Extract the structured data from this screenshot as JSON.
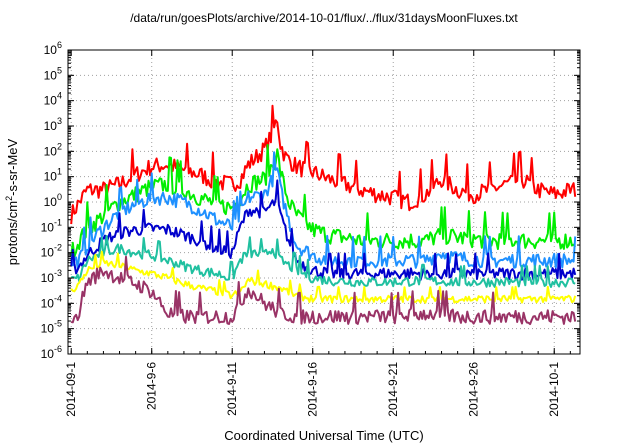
{
  "chart_data": {
    "type": "line",
    "title": "/data/run/goesPlots/archive/2014-10-01/flux/../flux/31daysMoonFluxes.txt",
    "xlabel": "Coordinated Universal Time (UTC)",
    "ylabel": {
      "base": "protons/cm",
      "sup": "2",
      "rest": "-s-sr-MeV"
    },
    "yscale": "log",
    "ylim": [
      1e-06,
      1000000.0
    ],
    "xlim": [
      -0.2,
      31.6
    ],
    "x_unit": "days since 2014-09-01",
    "grid": true,
    "xticks": [
      {
        "x": 0,
        "label": "2014-09-1"
      },
      {
        "x": 5,
        "label": "2014-9-6"
      },
      {
        "x": 10,
        "label": "2014-9-11"
      },
      {
        "x": 15,
        "label": "2014-9-16"
      },
      {
        "x": 20,
        "label": "2014-9-21"
      },
      {
        "x": 25,
        "label": "2014-9-26"
      },
      {
        "x": 30,
        "label": "2014-10-1"
      }
    ],
    "yticks": [
      {
        "exp": -6,
        "label": "10",
        "sup": "-6"
      },
      {
        "exp": -5,
        "label": "10",
        "sup": "-5"
      },
      {
        "exp": -4,
        "label": "10",
        "sup": "-4"
      },
      {
        "exp": -3,
        "label": "10",
        "sup": "-3"
      },
      {
        "exp": -2,
        "label": "10",
        "sup": "-2"
      },
      {
        "exp": -1,
        "label": "10",
        "sup": "-1"
      },
      {
        "exp": 0,
        "label": "10",
        "sup": "0"
      },
      {
        "exp": 1,
        "label": "10",
        "sup": "1"
      },
      {
        "exp": 2,
        "label": "10",
        "sup": "2"
      },
      {
        "exp": 3,
        "label": "10",
        "sup": "3"
      },
      {
        "exp": 4,
        "label": "10",
        "sup": "4"
      },
      {
        "exp": 5,
        "label": "10",
        "sup": "5"
      },
      {
        "exp": 6,
        "label": "10",
        "sup": "6"
      }
    ],
    "series": [
      {
        "color": "#ff0000",
        "noise": 0.35,
        "points": [
          [
            0,
            0.3
          ],
          [
            0.5,
            1.0
          ],
          [
            1,
            3
          ],
          [
            2,
            3
          ],
          [
            3,
            5
          ],
          [
            4,
            12
          ],
          [
            5,
            25
          ],
          [
            6,
            30
          ],
          [
            7,
            18
          ],
          [
            8,
            12
          ],
          [
            9,
            6
          ],
          [
            10,
            5
          ],
          [
            10.5,
            8
          ],
          [
            11,
            30
          ],
          [
            11.5,
            60
          ],
          [
            12,
            120
          ],
          [
            12.5,
            500
          ],
          [
            12.8,
            2000
          ],
          [
            13,
            200
          ],
          [
            13.3,
            60
          ],
          [
            14,
            25
          ],
          [
            15,
            15
          ],
          [
            16,
            8
          ],
          [
            17,
            5
          ],
          [
            18,
            3
          ],
          [
            19,
            2
          ],
          [
            20,
            1.5
          ],
          [
            21,
            1
          ],
          [
            22,
            2
          ],
          [
            23,
            8
          ],
          [
            24,
            3
          ],
          [
            25,
            2
          ],
          [
            26,
            3
          ],
          [
            27,
            5
          ],
          [
            28,
            8
          ],
          [
            29,
            3
          ],
          [
            30,
            2
          ],
          [
            31,
            3
          ]
        ]
      },
      {
        "color": "#00ee00",
        "noise": 0.35,
        "points": [
          [
            0,
            0.01
          ],
          [
            0.5,
            0.03
          ],
          [
            1,
            0.08
          ],
          [
            2,
            0.3
          ],
          [
            3,
            1
          ],
          [
            4,
            2
          ],
          [
            5,
            4
          ],
          [
            6,
            5
          ],
          [
            7,
            3
          ],
          [
            8,
            1.5
          ],
          [
            9,
            0.8
          ],
          [
            10,
            0.6
          ],
          [
            10.5,
            1.5
          ],
          [
            11,
            5
          ],
          [
            12,
            8
          ],
          [
            12.5,
            30
          ],
          [
            12.8,
            80
          ],
          [
            13,
            15
          ],
          [
            13.5,
            1
          ],
          [
            14,
            0.3
          ],
          [
            15,
            0.08
          ],
          [
            16,
            0.05
          ],
          [
            17,
            0.04
          ],
          [
            18,
            0.03
          ],
          [
            20,
            0.03
          ],
          [
            22,
            0.03
          ],
          [
            23,
            0.05
          ],
          [
            24,
            0.04
          ],
          [
            26,
            0.03
          ],
          [
            28,
            0.03
          ],
          [
            30,
            0.03
          ],
          [
            31,
            0.03
          ]
        ]
      },
      {
        "color": "#1e90ff",
        "noise": 0.3,
        "points": [
          [
            0,
            0.004
          ],
          [
            0.5,
            0.005
          ],
          [
            1,
            0.02
          ],
          [
            2,
            0.1
          ],
          [
            3,
            0.4
          ],
          [
            4,
            0.8
          ],
          [
            5,
            1.5
          ],
          [
            6,
            1.5
          ],
          [
            7,
            1
          ],
          [
            8,
            0.5
          ],
          [
            9,
            0.2
          ],
          [
            10,
            0.1
          ],
          [
            10.5,
            0.3
          ],
          [
            11,
            1.5
          ],
          [
            12,
            2
          ],
          [
            12.5,
            8
          ],
          [
            12.8,
            20
          ],
          [
            13,
            3
          ],
          [
            13.5,
            0.2
          ],
          [
            14,
            0.02
          ],
          [
            15,
            0.008
          ],
          [
            16,
            0.005
          ],
          [
            18,
            0.005
          ],
          [
            20,
            0.005
          ],
          [
            22,
            0.005
          ],
          [
            23,
            0.01
          ],
          [
            24,
            0.006
          ],
          [
            26,
            0.005
          ],
          [
            28,
            0.005
          ],
          [
            30,
            0.005
          ],
          [
            31,
            0.005
          ]
        ]
      },
      {
        "color": "#0000cc",
        "noise": 0.25,
        "points": [
          [
            0,
            0.002
          ],
          [
            0.5,
            0.003
          ],
          [
            1,
            0.008
          ],
          [
            2,
            0.03
          ],
          [
            3,
            0.06
          ],
          [
            4,
            0.08
          ],
          [
            5,
            0.09
          ],
          [
            6,
            0.08
          ],
          [
            7,
            0.05
          ],
          [
            8,
            0.03
          ],
          [
            9,
            0.015
          ],
          [
            10,
            0.01
          ],
          [
            10.5,
            0.1
          ],
          [
            11,
            0.5
          ],
          [
            12,
            0.4
          ],
          [
            12.5,
            0.8
          ],
          [
            12.8,
            1.2
          ],
          [
            13,
            0.3
          ],
          [
            13.5,
            0.03
          ],
          [
            14,
            0.005
          ],
          [
            15,
            0.002
          ],
          [
            16,
            0.0015
          ],
          [
            18,
            0.0015
          ],
          [
            20,
            0.0015
          ],
          [
            22,
            0.0015
          ],
          [
            24,
            0.0015
          ],
          [
            26,
            0.0015
          ],
          [
            28,
            0.0015
          ],
          [
            30,
            0.0015
          ],
          [
            31,
            0.0015
          ]
        ]
      },
      {
        "color": "#20c0a0",
        "noise": 0.2,
        "points": [
          [
            0,
            0.0008
          ],
          [
            0.5,
            0.001
          ],
          [
            1,
            0.005
          ],
          [
            2,
            0.01
          ],
          [
            3,
            0.015
          ],
          [
            4,
            0.01
          ],
          [
            5,
            0.008
          ],
          [
            6,
            0.005
          ],
          [
            7,
            0.003
          ],
          [
            8,
            0.002
          ],
          [
            9,
            0.0015
          ],
          [
            10,
            0.001
          ],
          [
            10.5,
            0.005
          ],
          [
            11,
            0.01
          ],
          [
            12,
            0.008
          ],
          [
            12.5,
            0.015
          ],
          [
            13,
            0.005
          ],
          [
            14,
            0.002
          ],
          [
            15,
            0.001
          ],
          [
            16,
            0.0008
          ],
          [
            18,
            0.0007
          ],
          [
            20,
            0.0007
          ],
          [
            22,
            0.0008
          ],
          [
            24,
            0.0007
          ],
          [
            26,
            0.0007
          ],
          [
            28,
            0.0007
          ],
          [
            30,
            0.0007
          ],
          [
            31,
            0.0007
          ]
        ]
      },
      {
        "color": "#ffff00",
        "noise": 0.15,
        "points": [
          [
            0,
            0.0003
          ],
          [
            0.5,
            0.0006
          ],
          [
            1,
            0.002
          ],
          [
            2,
            0.004
          ],
          [
            3,
            0.003
          ],
          [
            4,
            0.002
          ],
          [
            5,
            0.0015
          ],
          [
            6,
            0.001
          ],
          [
            7,
            0.0006
          ],
          [
            8,
            0.0004
          ],
          [
            9,
            0.0003
          ],
          [
            10,
            0.0002
          ],
          [
            10.5,
            0.0003
          ],
          [
            11,
            0.0008
          ],
          [
            12,
            0.0006
          ],
          [
            13,
            0.0004
          ],
          [
            14,
            0.0002
          ],
          [
            15,
            0.00015
          ],
          [
            16,
            0.00015
          ],
          [
            18,
            0.00015
          ],
          [
            20,
            0.00015
          ],
          [
            22,
            0.00015
          ],
          [
            24,
            0.00015
          ],
          [
            26,
            0.00015
          ],
          [
            28,
            0.00015
          ],
          [
            30,
            0.00015
          ],
          [
            31,
            0.00015
          ]
        ]
      },
      {
        "color": "#993366",
        "noise": 0.3,
        "points": [
          [
            0,
            3e-05
          ],
          [
            0.3,
            2e-05
          ],
          [
            0.6,
            0.0001
          ],
          [
            1,
            0.0007
          ],
          [
            2,
            0.002
          ],
          [
            3,
            0.001
          ],
          [
            4,
            0.0006
          ],
          [
            5,
            0.0003
          ],
          [
            6,
            4e-05
          ],
          [
            7,
            3e-05
          ],
          [
            8,
            3e-05
          ],
          [
            9,
            3e-05
          ],
          [
            10,
            3e-05
          ],
          [
            10.5,
            0.0001
          ],
          [
            11,
            0.0004
          ],
          [
            12,
            0.0001
          ],
          [
            13,
            4e-05
          ],
          [
            14,
            3e-05
          ],
          [
            15,
            3e-05
          ],
          [
            18,
            3e-05
          ],
          [
            20,
            3e-05
          ],
          [
            22,
            4e-05
          ],
          [
            24,
            3e-05
          ],
          [
            26,
            3e-05
          ],
          [
            28,
            3e-05
          ],
          [
            30,
            3e-05
          ],
          [
            31,
            3e-05
          ]
        ]
      }
    ]
  }
}
